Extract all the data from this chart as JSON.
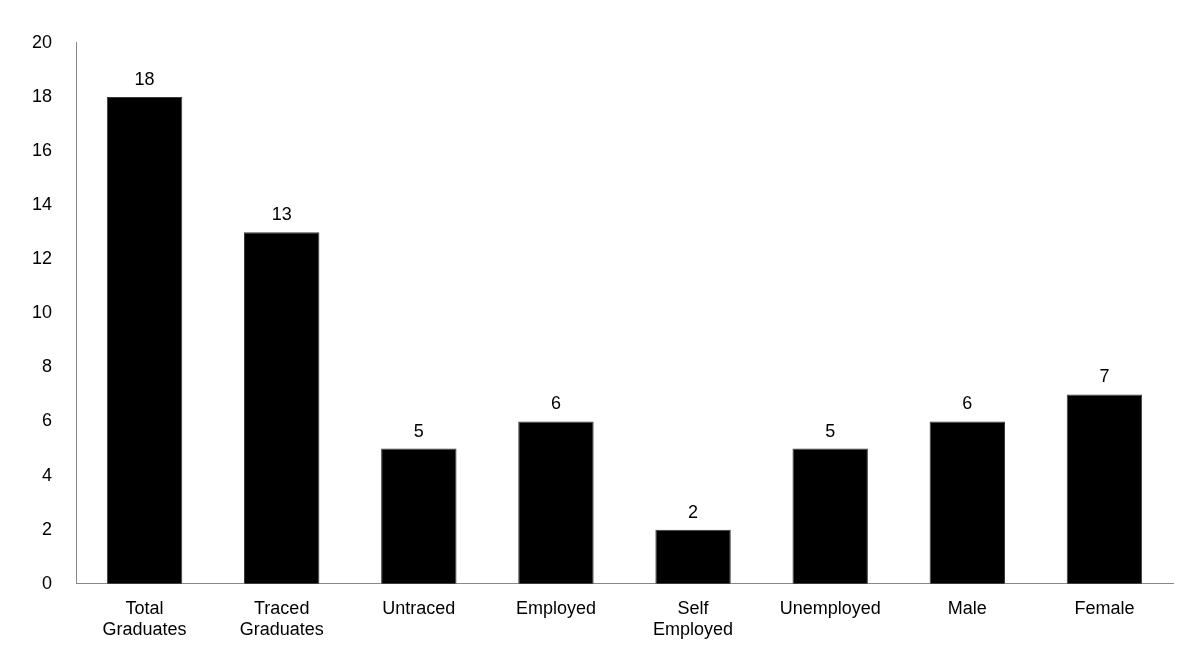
{
  "chart_data": {
    "type": "bar",
    "categories": [
      "Total Graduates",
      "Traced Graduates",
      "Untraced",
      "Employed",
      "Self Employed",
      "Unemployed",
      "Male",
      "Female"
    ],
    "values": [
      18,
      13,
      5,
      6,
      2,
      5,
      6,
      7
    ],
    "color": "#000000",
    "ylim": [
      0,
      20
    ],
    "yticks": [
      0,
      2,
      4,
      6,
      8,
      10,
      12,
      14,
      16,
      18,
      20
    ],
    "grid": false,
    "legend": false,
    "data_labels": true
  }
}
